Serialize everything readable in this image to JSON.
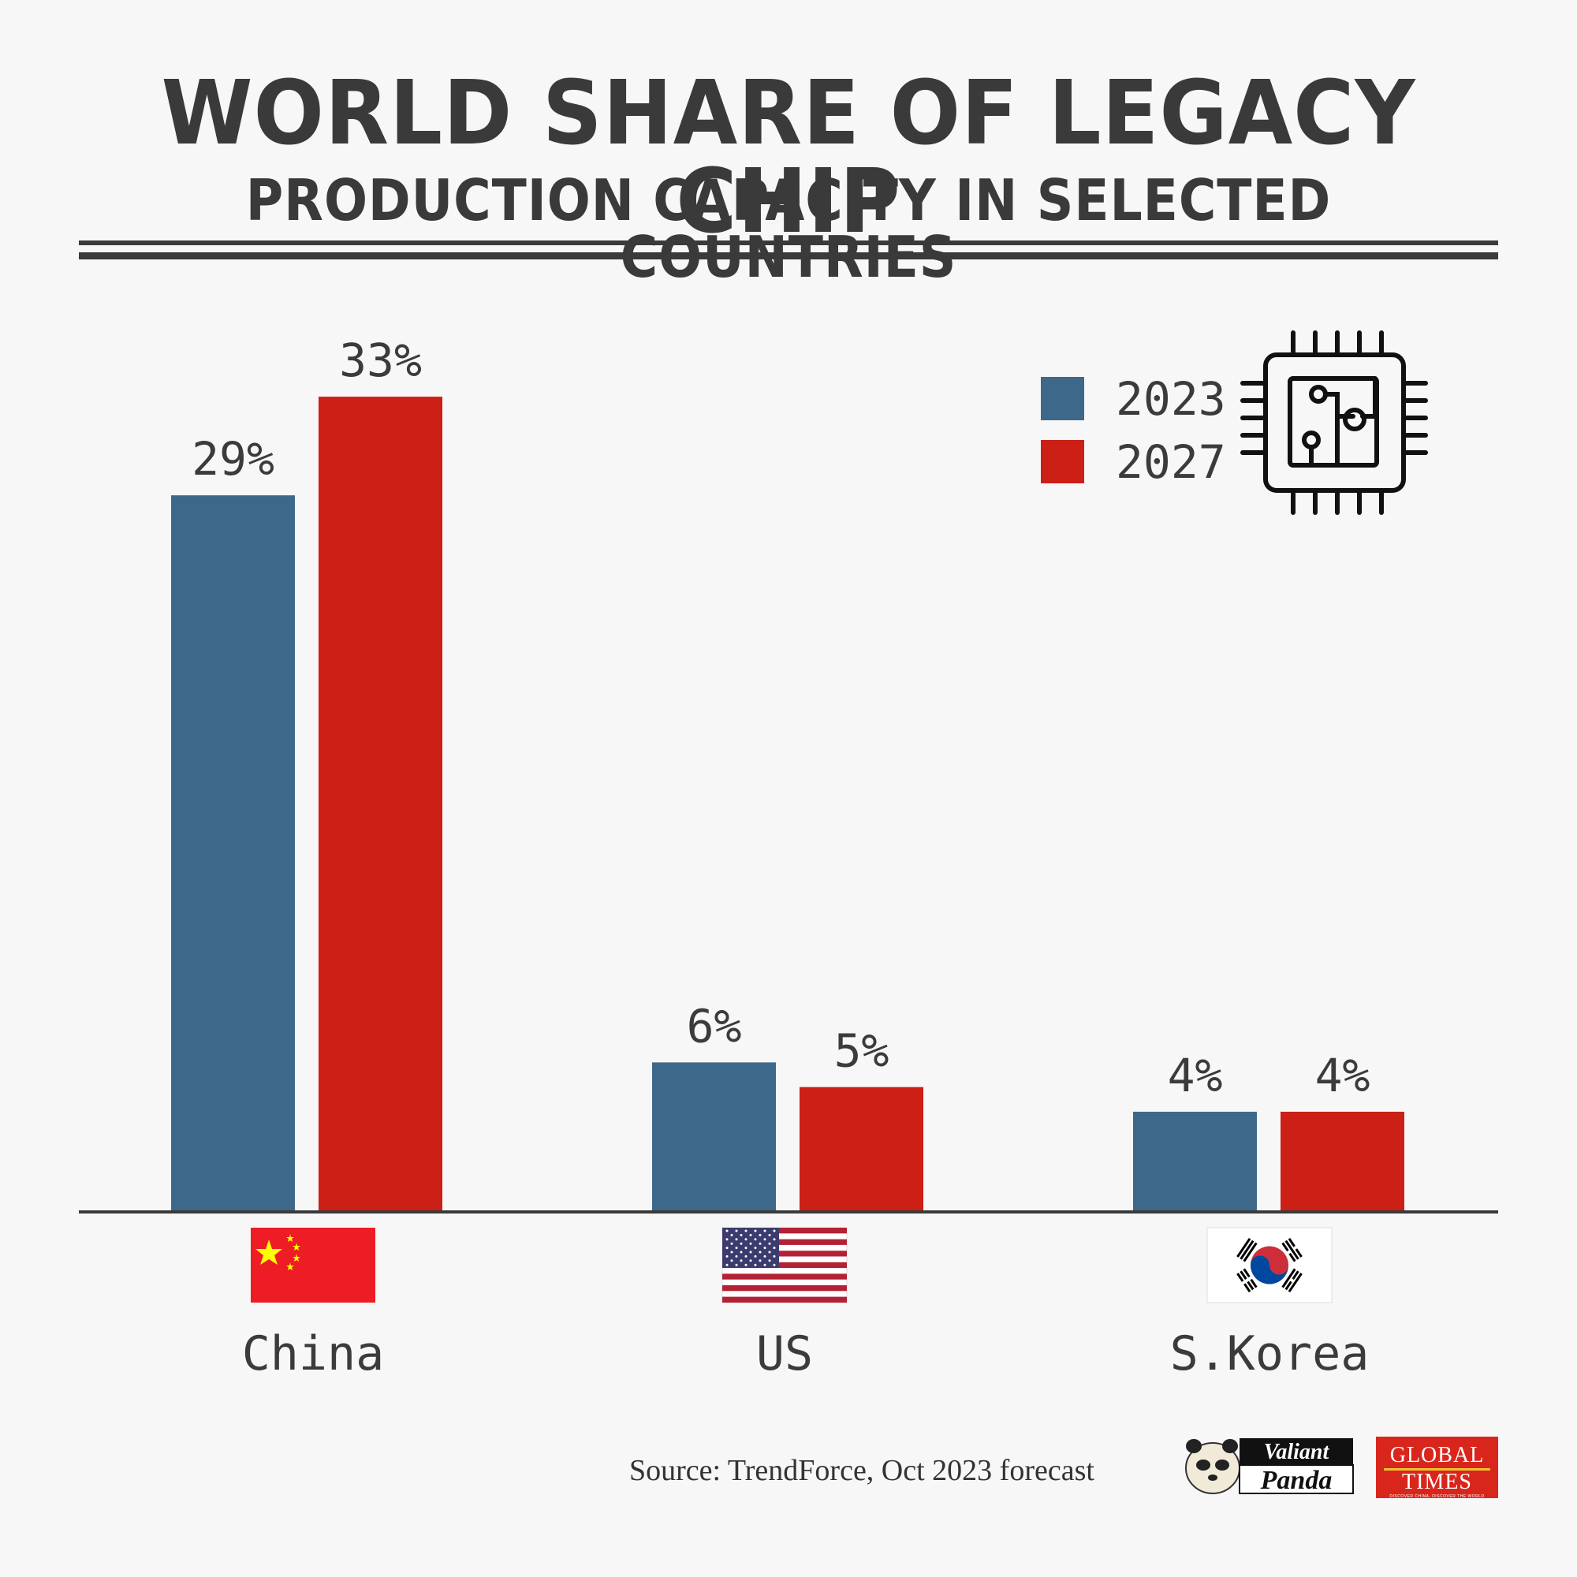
{
  "header": {
    "title_line1": "WORLD SHARE OF LEGACY CHIP",
    "title_line2": "PRODUCTION CAPACITY IN SELECTED COUNTRIES"
  },
  "chart_data": {
    "type": "bar",
    "title": "WORLD SHARE OF LEGACY CHIP PRODUCTION CAPACITY IN SELECTED COUNTRIES",
    "categories": [
      "China",
      "US",
      "S.Korea"
    ],
    "series": [
      {
        "name": "2023",
        "values": [
          29,
          6,
          4
        ],
        "labels": [
          "29%",
          "6%",
          "4%"
        ],
        "color": "#3e6889"
      },
      {
        "name": "2027",
        "values": [
          33,
          5,
          4
        ],
        "labels": [
          "33%",
          "5%",
          "4%"
        ],
        "color": "#cc1f16"
      }
    ],
    "ylim": [
      0,
      33
    ],
    "xlabel": "",
    "ylabel": "",
    "legend": "top-right",
    "grid": false
  },
  "icons": {
    "legend_icon": "microchip-icon",
    "category_icons": [
      "china-flag-icon",
      "us-flag-icon",
      "south-korea-flag-icon"
    ]
  },
  "footer": {
    "source": "Source: TrendForce, Oct 2023 forecast",
    "brand1_line1": "Valiant",
    "brand1_line2": "Panda",
    "brand2_line1": "GLOBAL",
    "brand2_line2": "TIMES",
    "brand2_tagline": "DISCOVER CHINA, DISCOVER THE WORLD"
  },
  "colors": {
    "background": "#f7f7f7",
    "text": "#3b3b3b",
    "axis": "#3a3a3a"
  }
}
